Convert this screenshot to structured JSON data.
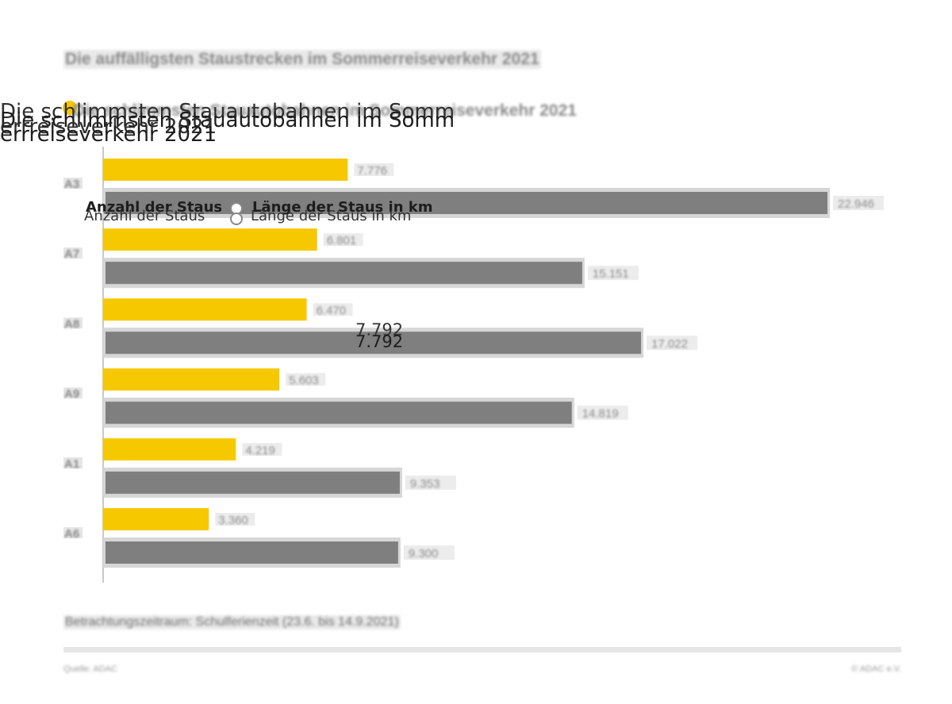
{
  "header": {
    "sup_title": "Die auffälligsten Staustrecken im Sommerreiseverkehr 2021",
    "title": "Die schlimmsten Stauautobahnen im Sommerreiseverkehr 2021",
    "title_line1": "Die schlimmsten Stauautobahnen im Somm",
    "title_line2": "errreiseverkehr 2021"
  },
  "legend": {
    "count_label": "Anzahl der Staus",
    "length_label": "Länge der Staus in km"
  },
  "overlay": {
    "value": "7.792"
  },
  "footer": {
    "footnote": "Betrachtungszeitraum: Schulferienzeit (23.6. bis 14.9.2021)",
    "source": "Quelle: ADAC",
    "credit": "© ADAC e.V."
  },
  "colors": {
    "count": "#f6c800",
    "length": "#7f7f7f",
    "track": "#d6d6d6",
    "axis": "#c9c9c9"
  },
  "chart_data": {
    "type": "bar",
    "orientation": "horizontal",
    "categories": [
      "A3",
      "A7",
      "A8",
      "A9",
      "A1",
      "A6"
    ],
    "series": [
      {
        "name": "Anzahl der Staus",
        "values": [
          7776,
          6801,
          6470,
          5603,
          4219,
          3360
        ],
        "labels": [
          "7.776",
          "6.801",
          "6.470",
          "5.603",
          "4.219",
          "3.360"
        ]
      },
      {
        "name": "Länge der Staus in km",
        "values": [
          22946,
          15151,
          17022,
          14819,
          9353,
          9300
        ],
        "labels": [
          "22.946",
          "15.151",
          "17.022",
          "14.819",
          "9.353",
          "9.300"
        ]
      }
    ],
    "xlim": [
      0,
      25000
    ],
    "grid": false,
    "legend_position": "top-left"
  }
}
